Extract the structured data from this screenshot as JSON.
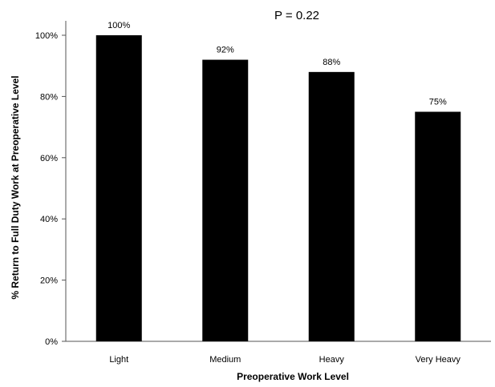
{
  "chart_data": {
    "type": "bar",
    "title": "",
    "annotation": "P = 0.22",
    "xlabel": "Preoperative Work Level",
    "ylabel": "% Return to Full Duty Work at Preoperative Level",
    "categories": [
      "Light",
      "Medium",
      "Heavy",
      "Very Heavy"
    ],
    "values": [
      100,
      92,
      88,
      75
    ],
    "data_labels": [
      "100%",
      "92%",
      "88%",
      "75%"
    ],
    "ylim": [
      0,
      100
    ],
    "yticks": [
      0,
      20,
      40,
      60,
      80,
      100
    ],
    "ytick_labels": [
      "0%",
      "20%",
      "40%",
      "60%",
      "80%",
      "100%"
    ],
    "grid": false,
    "legend": "none",
    "colors": {
      "bar": "#000000",
      "axis": "#555555",
      "background": "#ffffff"
    }
  }
}
